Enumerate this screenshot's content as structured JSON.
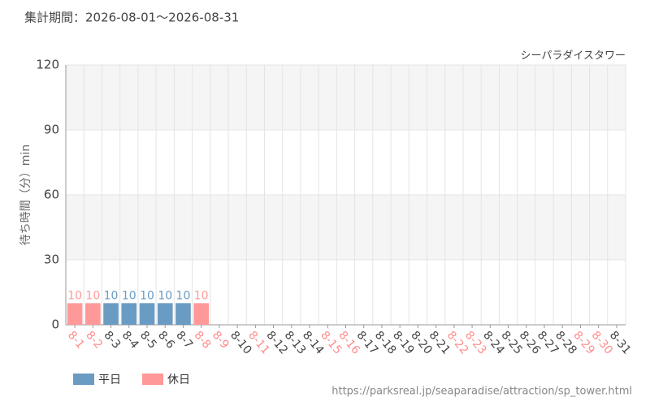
{
  "chart_data": {
    "type": "bar",
    "title": "集計期間：2026-08-01～2026-08-31",
    "subtitle": "シーパラダイスタワー",
    "y_label": "待ち時間（分）min",
    "source": "https://parksreal.jp/seaparadise/attraction/sp_tower.html",
    "categories": [
      "8-1",
      "8-2",
      "8-3",
      "8-4",
      "8-5",
      "8-6",
      "8-7",
      "8-8",
      "8-9",
      "8-10",
      "8-11",
      "8-12",
      "8-13",
      "8-14",
      "8-15",
      "8-16",
      "8-17",
      "8-18",
      "8-19",
      "8-20",
      "8-21",
      "8-22",
      "8-23",
      "8-24",
      "8-25",
      "8-26",
      "8-27",
      "8-28",
      "8-29",
      "8-30",
      "8-31"
    ],
    "tick_label_colors": [
      "#ff8c8c",
      "#ff8c8c",
      "#444444",
      "#444444",
      "#444444",
      "#444444",
      "#444444",
      "#ff8c8c",
      "#ff8c8c",
      "#444444",
      "#ff8c8c",
      "#444444",
      "#444444",
      "#444444",
      "#ff8c8c",
      "#ff8c8c",
      "#444444",
      "#444444",
      "#444444",
      "#444444",
      "#444444",
      "#ff8c8c",
      "#ff8c8c",
      "#444444",
      "#444444",
      "#444444",
      "#444444",
      "#444444",
      "#ff8c8c",
      "#ff8c8c",
      "#444444"
    ],
    "series": [
      {
        "name": "平日",
        "color": "#6a9bc3",
        "values": [
          null,
          null,
          10,
          10,
          10,
          10,
          10,
          null,
          null,
          null,
          null,
          null,
          null,
          null,
          null,
          null,
          null,
          null,
          null,
          null,
          null,
          null,
          null,
          null,
          null,
          null,
          null,
          null,
          null,
          null,
          null
        ]
      },
      {
        "name": "休日",
        "color": "#ff9999",
        "values": [
          10,
          10,
          null,
          null,
          null,
          null,
          null,
          10,
          null,
          null,
          null,
          null,
          null,
          null,
          null,
          null,
          null,
          null,
          null,
          null,
          null,
          null,
          null,
          null,
          null,
          null,
          null,
          null,
          null,
          null,
          null
        ]
      }
    ],
    "ylim": [
      0,
      120
    ],
    "yticks": [
      0,
      30,
      60,
      90,
      120
    ],
    "grid": true
  }
}
